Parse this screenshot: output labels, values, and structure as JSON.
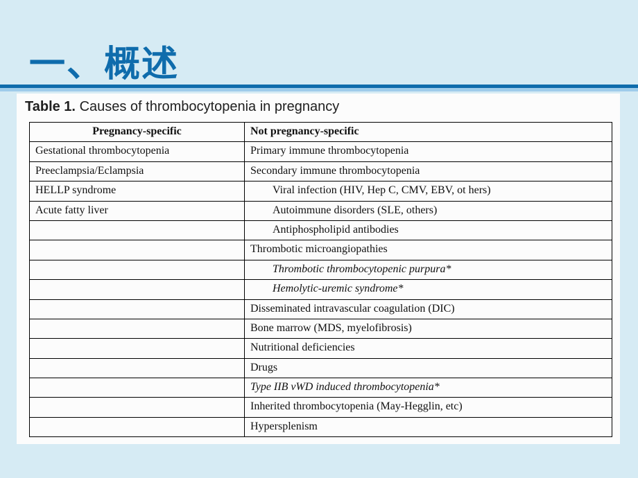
{
  "colors": {
    "page_bg": "#d6ebf4",
    "heading_color": "#0f6cac",
    "underline_dark": "#0f6cac",
    "underline_light": "#9fccea",
    "table_bg": "#fcfcfc",
    "border": "#000000",
    "text": "#101010"
  },
  "heading": "一、概述",
  "caption": {
    "label": "Table 1.",
    "text": "Causes of thrombocytopenia in pregnancy"
  },
  "table": {
    "headers": {
      "c1": "Pregnancy-specific",
      "c2": "Not pregnancy-specific"
    },
    "rows": [
      {
        "c1": "Gestational thrombocytopenia",
        "c2": "Primary immune thrombocytopenia"
      },
      {
        "c1": "Preeclampsia/Eclampsia",
        "c2": "Secondary immune thrombocytopenia"
      },
      {
        "c1": "HELLP syndrome",
        "c2": "Viral infection (HIV, Hep C, CMV, EBV, ot hers)",
        "c2_indent": true
      },
      {
        "c1": "Acute fatty liver",
        "c2": "Autoimmune disorders (SLE, others)",
        "c2_indent": true
      },
      {
        "c1": "",
        "c2": "Antiphospholipid antibodies",
        "c2_indent": true
      },
      {
        "c1": "",
        "c2": "Thrombotic microangiopathies"
      },
      {
        "c1": "",
        "c2": "Thrombotic thrombocytopenic purpura*",
        "c2_indent": true,
        "c2_italic": true
      },
      {
        "c1": "",
        "c2": "Hemolytic-uremic syndrome*",
        "c2_indent": true,
        "c2_italic": true
      },
      {
        "c1": "",
        "c2": "Disseminated intravascular coagulation (DIC)"
      },
      {
        "c1": "",
        "c2": "Bone marrow (MDS, myelofibrosis)"
      },
      {
        "c1": "",
        "c2": "Nutritional deficiencies"
      },
      {
        "c1": "",
        "c2": "Drugs"
      },
      {
        "c1": "",
        "c2": "Type IIB vWD induced thrombocytopenia*",
        "c2_italic": true
      },
      {
        "c1": "",
        "c2": "Inherited thrombocytopenia (May-Hegglin, etc)"
      },
      {
        "c1": "",
        "c2": "Hypersplenism"
      }
    ]
  }
}
